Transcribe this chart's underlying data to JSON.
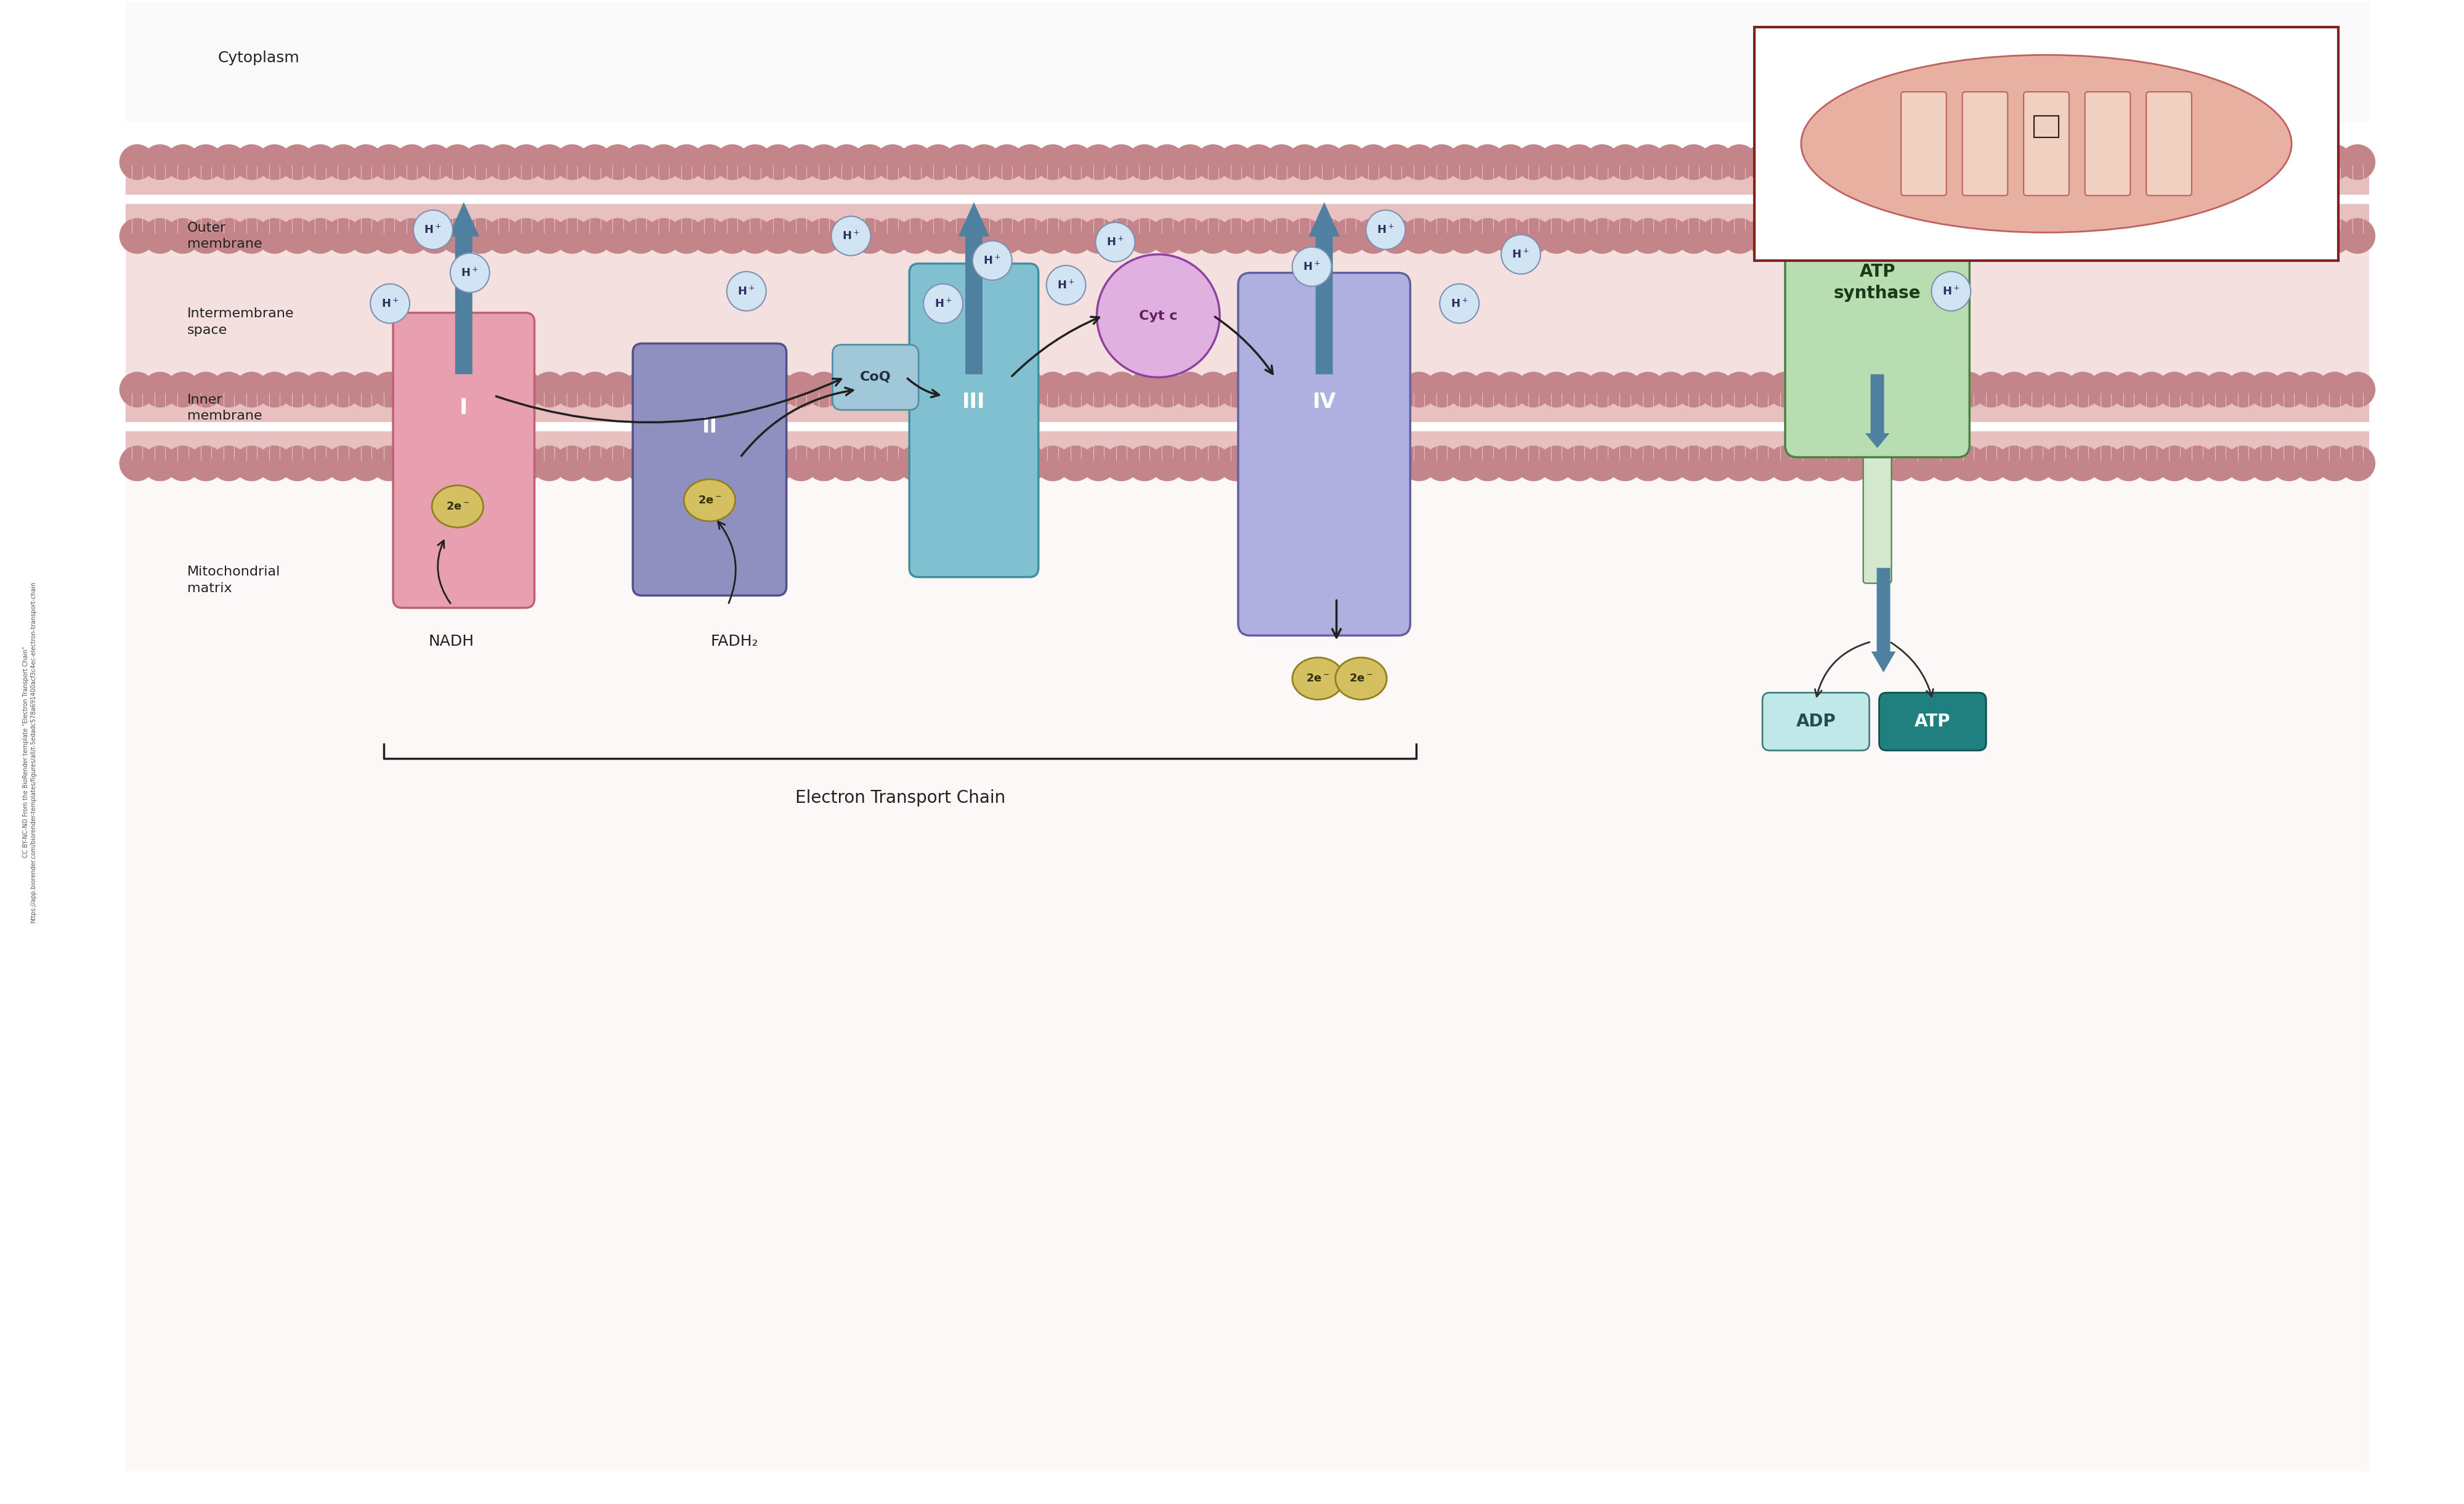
{
  "bg_color": "#ffffff",
  "cytoplasm_color": "#fdf6f6",
  "intermembrane_color": "#f5e8e8",
  "matrix_color": "#ffffff",
  "outer_membrane_color": "#c4858a",
  "outer_membrane_fill": "#e8c0c0",
  "inner_membrane_color": "#c4858a",
  "inner_membrane_fill": "#e8c0c0",
  "complex_I_color": "#e8a0b0",
  "complex_I_border": "#c06070",
  "complex_II_color": "#9090c0",
  "complex_II_border": "#505090",
  "complex_III_color": "#80c0d0",
  "complex_III_border": "#4090a0",
  "complex_IV_color": "#b0b0e0",
  "complex_IV_border": "#6060a0",
  "atp_synthase_top_color": "#b8ddb0",
  "atp_synthase_top_border": "#4a8040",
  "atp_synthase_bottom_color": "#b8ddb0",
  "coq_color": "#a0c8d8",
  "coq_border": "#5090a8",
  "cytc_color": "#e0b0e0",
  "cytc_border": "#9040a0",
  "electron_circle_color": "#d4c060",
  "electron_circle_border": "#908020",
  "hplus_circle_color": "#d0e4f4",
  "hplus_border": "#8090b0",
  "arrow_blue": "#5080a0",
  "arrow_dark": "#202020",
  "adp_color": "#c0e8e8",
  "adp_border": "#408080",
  "atp_color": "#208080",
  "atp_border": "#105050",
  "mito_border": "#802020",
  "mito_fill_outer": "#e8b0a0",
  "mito_fill_inner": "#e0a090",
  "label_color": "#222222",
  "title": "Electron Transport Chain",
  "cytoplasm_label": "Cytoplasm",
  "outer_membrane_label": "Outer\nmembrane",
  "intermembrane_label": "Intermembrane\nspace",
  "inner_membrane_label": "Inner\nmembrane",
  "matrix_label": "Mitochondrial\nmatrix",
  "nadh_label": "NADH",
  "fadh2_label": "FADH₂",
  "coq_label": "CoQ",
  "cytc_label": "Cyt c",
  "atp_synthase_label": "ATP\nsynthase",
  "adp_label": "ADP",
  "atp_label": "ATP"
}
